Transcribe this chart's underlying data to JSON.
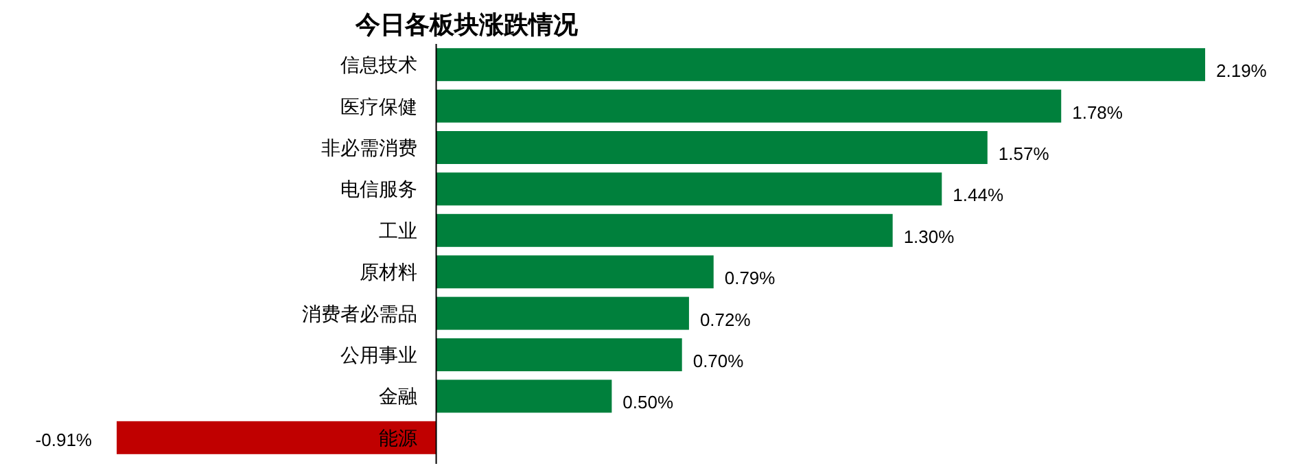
{
  "chart_data": {
    "type": "bar",
    "orientation": "horizontal",
    "title": "今日各板块涨跌情况",
    "categories": [
      "信息技术",
      "医疗保健",
      "非必需消费",
      "电信服务",
      "工业",
      "原材料",
      "消费者必需品",
      "公用事业",
      "金融",
      "能源"
    ],
    "values": [
      2.19,
      1.78,
      1.57,
      1.44,
      1.3,
      0.79,
      0.72,
      0.7,
      0.5,
      -0.91
    ],
    "colors": [
      "#00803c",
      "#00803c",
      "#00803c",
      "#00803c",
      "#00803c",
      "#00803c",
      "#00803c",
      "#00803c",
      "#00803c",
      "#c00000"
    ],
    "value_labels": [
      "2.19%",
      "1.78%",
      "1.57%",
      "1.44%",
      "1.30%",
      "0.79%",
      "0.72%",
      "0.70%",
      "0.50%",
      "-0.91%"
    ]
  }
}
